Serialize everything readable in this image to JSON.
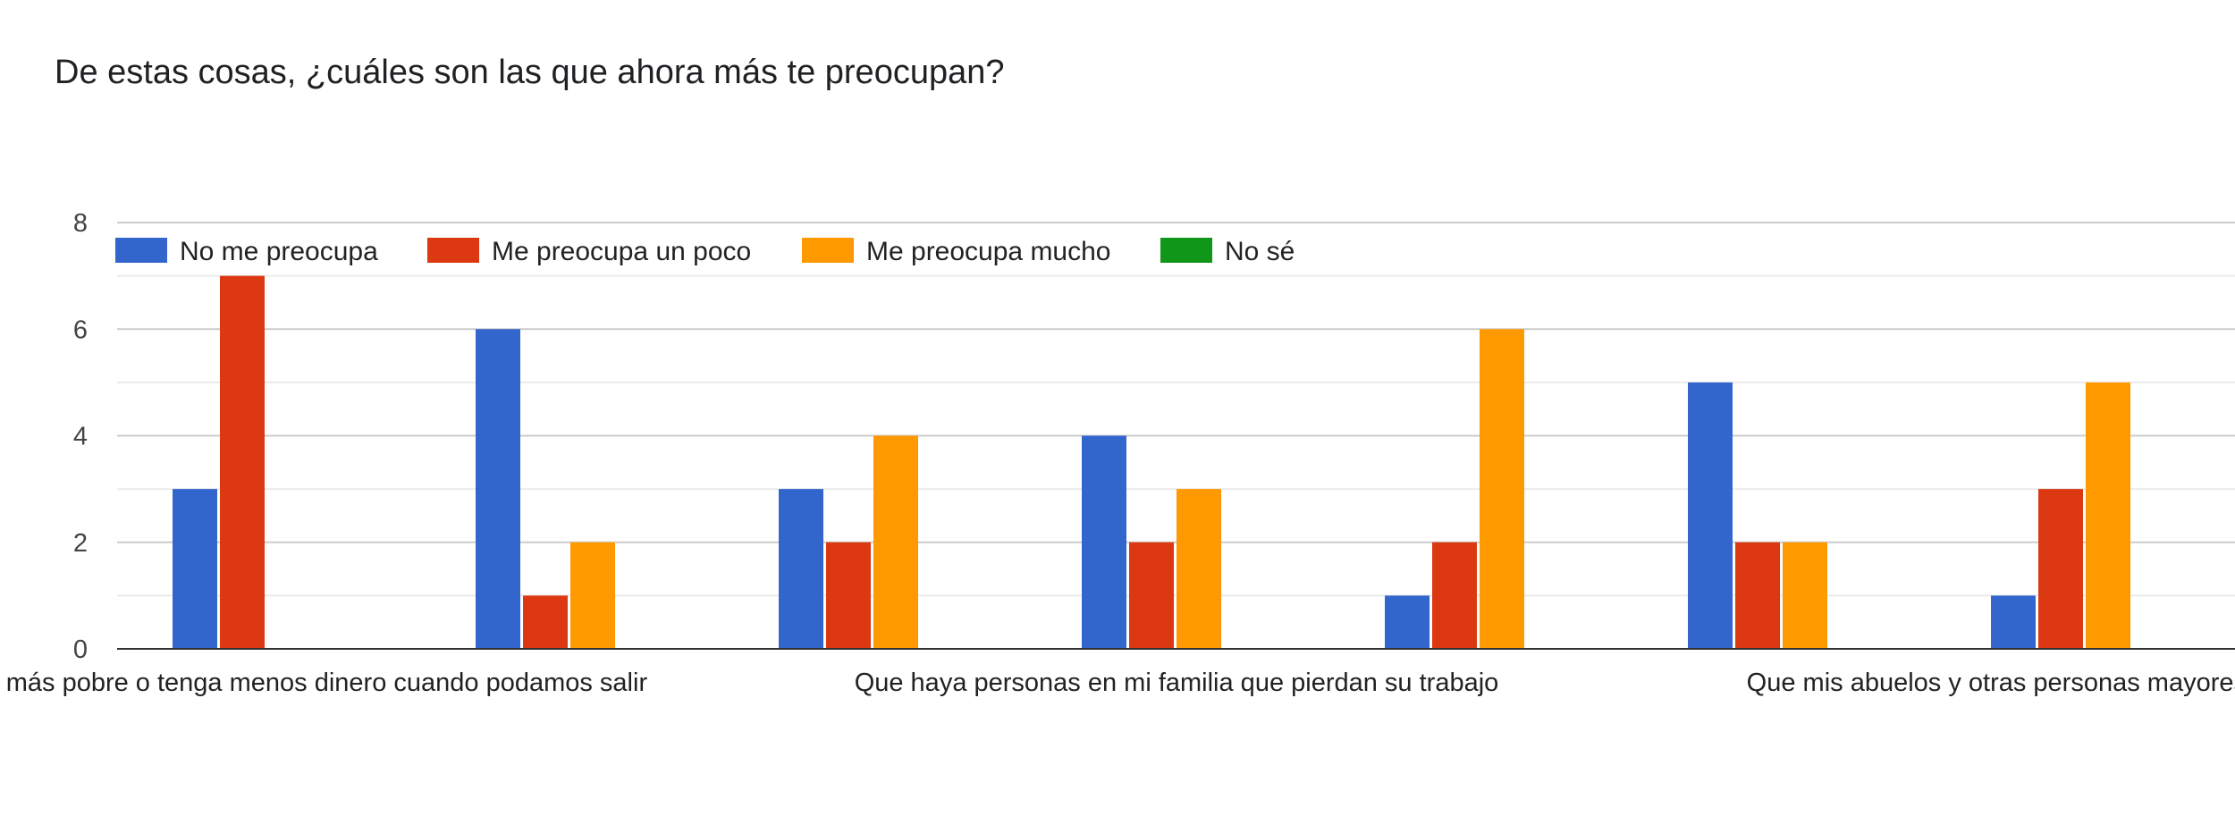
{
  "title": "De estas cosas, ¿cuáles son las que ahora más te preocupan?",
  "chart_data": {
    "type": "bar",
    "title": "De estas cosas, ¿cuáles son las que ahora más te preocupan?",
    "xlabel": "",
    "ylabel": "",
    "ylim": [
      0,
      8
    ],
    "yticks": [
      0,
      2,
      4,
      6,
      8
    ],
    "grid": true,
    "legend_position": "top-left",
    "categories": [
      "sea más pobre o tenga menos dinero cuando podamos salir",
      "",
      "Que haya personas en mi familia que pierdan su trabajo",
      "",
      "Que mis abuelos y otras personas mayores tengan c",
      "",
      ""
    ],
    "series": [
      {
        "name": "No me preocupa",
        "color": "#3366cc",
        "values": [
          3,
          6,
          3,
          4,
          1,
          5,
          1
        ]
      },
      {
        "name": "Me preocupa un poco",
        "color": "#dc3912",
        "values": [
          7,
          1,
          2,
          2,
          2,
          2,
          3
        ]
      },
      {
        "name": "Me preocupa mucho",
        "color": "#ff9900",
        "values": [
          0,
          2,
          4,
          3,
          6,
          2,
          5
        ]
      },
      {
        "name": "No sé",
        "color": "#109618",
        "values": [
          0,
          0,
          0,
          0,
          0,
          0,
          0
        ]
      }
    ]
  }
}
